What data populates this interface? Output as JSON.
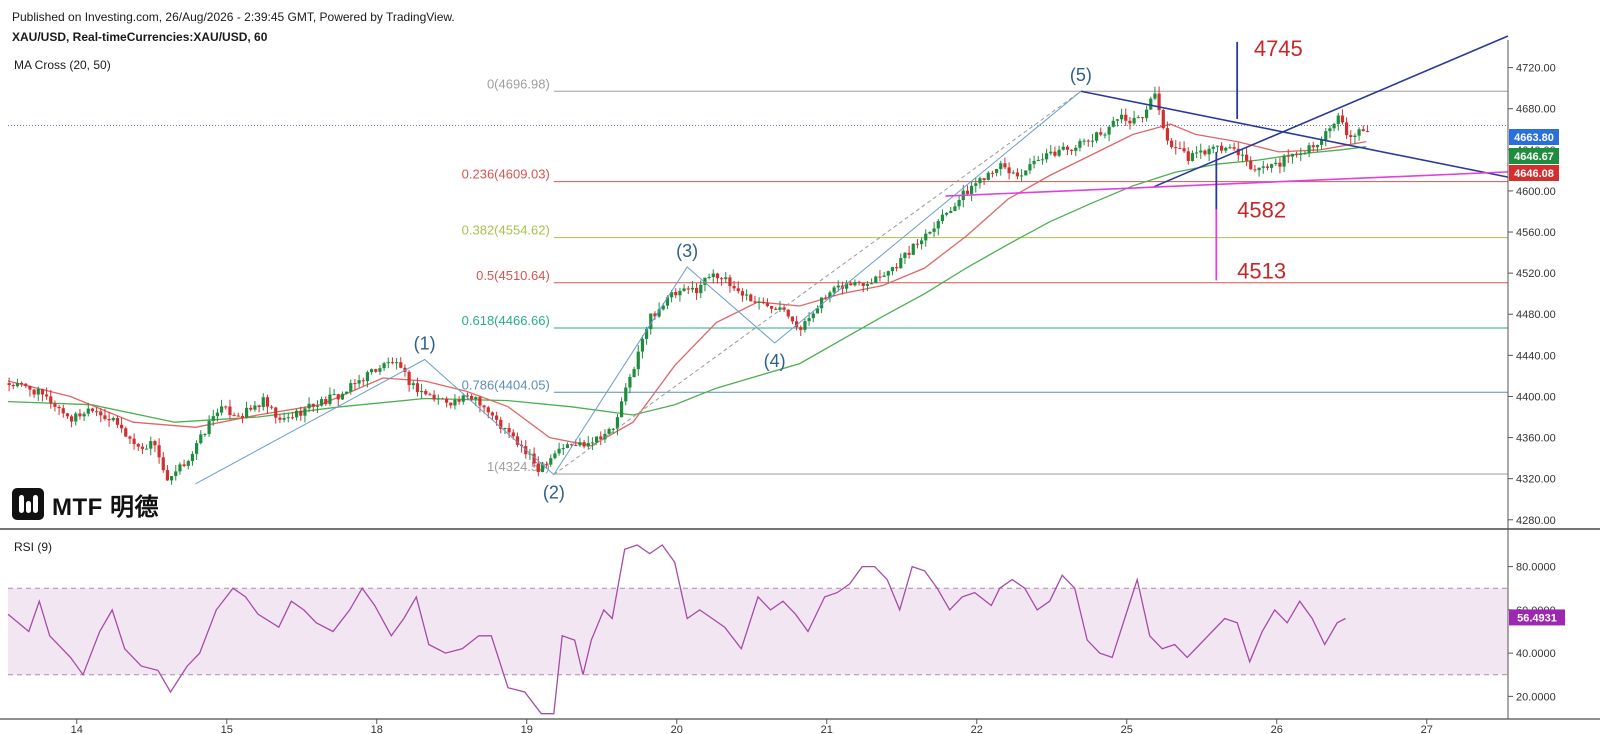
{
  "header": {
    "published": "Published on Investing.com, 26/Aug/2026 - 2:39:45 GMT, Powered by TradingView.",
    "symbol": "XAU/USD, Real-timeCurrencies:XAU/USD, 60"
  },
  "indicators": {
    "ma_cross": "MA Cross (20, 50)",
    "rsi": "RSI (9)"
  },
  "logo": {
    "text": "MTF 明德"
  },
  "colors": {
    "up": "#1e8e3e",
    "down": "#d32f2f",
    "ma_fast": "#e06666",
    "ma_slow": "#4caf50",
    "rsi": "#a64ca6",
    "rsi_band": "#f3e6f3",
    "triangle": "#2a3a9b",
    "support": "#e040e0",
    "wave": "#2d5f8a",
    "price_line": "#2a4a9b"
  },
  "chart_data": [
    {
      "type": "candlestick",
      "title": "XAU/USD, Real-timeCurrencies:XAU/USD, 60",
      "x_tick_labels": [
        "14",
        "15",
        "18",
        "19",
        "20",
        "21",
        "22",
        "25",
        "26",
        "27"
      ],
      "y_ticks": [
        4280,
        4320,
        4360,
        4400,
        4440,
        4480,
        4520,
        4560,
        4600,
        4640,
        4680,
        4720
      ],
      "y_tick_labels": [
        "4280.00",
        "4320.00",
        "4360.00",
        "4400.00",
        "4440.00",
        "4480.00",
        "4520.00",
        "4560.00",
        "4600.00",
        "4640.00",
        "4680.00",
        "4720.00"
      ],
      "ylim": [
        4272,
        4742
      ],
      "grid": false,
      "price_path": [
        [
          0,
          4413
        ],
        [
          12,
          4408
        ],
        [
          22,
          4395
        ],
        [
          32,
          4378
        ],
        [
          42,
          4390
        ],
        [
          54,
          4372
        ],
        [
          64,
          4350
        ],
        [
          72,
          4355
        ],
        [
          78,
          4315
        ],
        [
          90,
          4345
        ],
        [
          102,
          4388
        ],
        [
          114,
          4382
        ],
        [
          124,
          4395
        ],
        [
          132,
          4375
        ],
        [
          148,
          4392
        ],
        [
          162,
          4402
        ],
        [
          176,
          4425
        ],
        [
          186,
          4434
        ],
        [
          196,
          4410
        ],
        [
          206,
          4398
        ],
        [
          216,
          4395
        ],
        [
          226,
          4400
        ],
        [
          236,
          4375
        ],
        [
          246,
          4355
        ],
        [
          256,
          4330
        ],
        [
          266,
          4350
        ],
        [
          278,
          4355
        ],
        [
          292,
          4368
        ],
        [
          300,
          4418
        ],
        [
          310,
          4478
        ],
        [
          320,
          4498
        ],
        [
          332,
          4505
        ],
        [
          340,
          4522
        ],
        [
          348,
          4508
        ],
        [
          362,
          4490
        ],
        [
          374,
          4488
        ],
        [
          382,
          4464
        ],
        [
          390,
          4490
        ],
        [
          402,
          4508
        ],
        [
          414,
          4512
        ],
        [
          426,
          4525
        ],
        [
          436,
          4545
        ],
        [
          446,
          4568
        ],
        [
          456,
          4588
        ],
        [
          466,
          4608
        ],
        [
          476,
          4625
        ],
        [
          486,
          4615
        ],
        [
          496,
          4628
        ],
        [
          506,
          4640
        ],
        [
          516,
          4645
        ],
        [
          526,
          4655
        ],
        [
          534,
          4672
        ],
        [
          544,
          4668
        ],
        [
          552,
          4694
        ],
        [
          558,
          4648
        ],
        [
          568,
          4632
        ],
        [
          578,
          4640
        ],
        [
          588,
          4642
        ],
        [
          600,
          4620
        ],
        [
          612,
          4628
        ],
        [
          624,
          4640
        ],
        [
          634,
          4655
        ],
        [
          640,
          4670
        ],
        [
          646,
          4650
        ],
        [
          652,
          4660
        ]
      ],
      "ma_fast": [
        [
          0,
          4415
        ],
        [
          30,
          4400
        ],
        [
          60,
          4375
        ],
        [
          90,
          4370
        ],
        [
          120,
          4382
        ],
        [
          150,
          4392
        ],
        [
          180,
          4418
        ],
        [
          200,
          4415
        ],
        [
          220,
          4405
        ],
        [
          240,
          4390
        ],
        [
          260,
          4360
        ],
        [
          280,
          4352
        ],
        [
          300,
          4375
        ],
        [
          320,
          4430
        ],
        [
          340,
          4472
        ],
        [
          360,
          4492
        ],
        [
          380,
          4488
        ],
        [
          400,
          4500
        ],
        [
          420,
          4508
        ],
        [
          440,
          4525
        ],
        [
          460,
          4556
        ],
        [
          480,
          4592
        ],
        [
          500,
          4615
        ],
        [
          520,
          4635
        ],
        [
          540,
          4655
        ],
        [
          558,
          4665
        ],
        [
          570,
          4655
        ],
        [
          590,
          4648
        ],
        [
          610,
          4638
        ],
        [
          630,
          4640
        ],
        [
          652,
          4648
        ]
      ],
      "ma_slow": [
        [
          0,
          4395
        ],
        [
          40,
          4392
        ],
        [
          80,
          4375
        ],
        [
          120,
          4380
        ],
        [
          160,
          4390
        ],
        [
          200,
          4398
        ],
        [
          240,
          4396
        ],
        [
          270,
          4390
        ],
        [
          300,
          4382
        ],
        [
          320,
          4392
        ],
        [
          340,
          4408
        ],
        [
          360,
          4420
        ],
        [
          380,
          4432
        ],
        [
          400,
          4455
        ],
        [
          420,
          4478
        ],
        [
          440,
          4500
        ],
        [
          460,
          4525
        ],
        [
          480,
          4548
        ],
        [
          500,
          4570
        ],
        [
          520,
          4588
        ],
        [
          540,
          4605
        ],
        [
          560,
          4618
        ],
        [
          580,
          4626
        ],
        [
          600,
          4630
        ],
        [
          620,
          4636
        ],
        [
          640,
          4640
        ],
        [
          652,
          4643
        ]
      ],
      "fibonacci": [
        {
          "label": "0(4696.98)",
          "value": 4696.98,
          "color": "#9e9e9e"
        },
        {
          "label": "0.236(4609.03)",
          "value": 4609.03,
          "color": "#d9534f"
        },
        {
          "label": "0.382(4554.62)",
          "value": 4554.62,
          "color": "#a8c34a"
        },
        {
          "label": "0.5(4510.64)",
          "value": 4510.64,
          "color": "#d9534f"
        },
        {
          "label": "0.618(4466.66)",
          "value": 4466.66,
          "color": "#27ae8a"
        },
        {
          "label": "0.786(4404.05)",
          "value": 4404.05,
          "color": "#5b8db8"
        },
        {
          "label": "1(4324.50)",
          "value": 4324.5,
          "color": "#9e9e9e"
        }
      ],
      "waves": [
        {
          "label": "(1)",
          "t": 200,
          "value": 4436
        },
        {
          "label": "(2)",
          "t": 262,
          "value": 4324
        },
        {
          "label": "(3)",
          "t": 326,
          "value": 4526
        },
        {
          "label": "(4)",
          "t": 368,
          "value": 4452
        },
        {
          "label": "(5)",
          "t": 515,
          "value": 4697
        }
      ],
      "wave_path": [
        [
          90,
          4315
        ],
        [
          200,
          4436
        ],
        [
          262,
          4324
        ],
        [
          326,
          4526
        ],
        [
          368,
          4452
        ],
        [
          515,
          4697
        ]
      ],
      "triangle": {
        "upper": [
          [
            515,
            4697
          ],
          [
            645,
            4644
          ]
        ],
        "lower": [
          [
            550,
            4604
          ],
          [
            645,
            4686
          ]
        ]
      },
      "support_line": [
        [
          450,
          4595
        ],
        [
          645,
          4612
        ]
      ],
      "targets": [
        {
          "label": "4745",
          "value": 4745,
          "color": "#c62828"
        },
        {
          "label": "4582",
          "value": 4582,
          "color": "#c62828"
        },
        {
          "label": "4513",
          "value": 4513,
          "color": "#c62828"
        }
      ],
      "target_segments": [
        {
          "t": 590,
          "from": 4670,
          "to": 4745,
          "color": "#2a3a9b"
        },
        {
          "t": 580,
          "from": 4638,
          "to": 4582,
          "color": "#2a3a9b"
        },
        {
          "t": 580,
          "from": 4582,
          "to": 4513,
          "color": "#e040e0"
        }
      ],
      "current_price": 4663.8,
      "price_badges": [
        {
          "label": "4663.80",
          "color": "#2a6fdb"
        },
        {
          "label": "4646.67",
          "color": "#1e8e3e"
        },
        {
          "label": "4646.08",
          "color": "#d32f2f"
        }
      ]
    },
    {
      "type": "line",
      "title": "RSI (9)",
      "y_ticks": [
        20,
        40,
        60,
        80
      ],
      "y_tick_labels": [
        "20.0000",
        "40.0000",
        "60.0000",
        "80.0000"
      ],
      "ylim": [
        10,
        96
      ],
      "bands": [
        30,
        70
      ],
      "current_value": 56.4931,
      "current_label": "56.4931",
      "values": [
        [
          0,
          58
        ],
        [
          10,
          50
        ],
        [
          15,
          64
        ],
        [
          20,
          48
        ],
        [
          30,
          38
        ],
        [
          36,
          30
        ],
        [
          44,
          50
        ],
        [
          50,
          60
        ],
        [
          56,
          42
        ],
        [
          64,
          34
        ],
        [
          72,
          32
        ],
        [
          78,
          22
        ],
        [
          86,
          34
        ],
        [
          92,
          40
        ],
        [
          100,
          60
        ],
        [
          108,
          70
        ],
        [
          114,
          66
        ],
        [
          120,
          58
        ],
        [
          130,
          52
        ],
        [
          136,
          64
        ],
        [
          142,
          60
        ],
        [
          148,
          54
        ],
        [
          156,
          50
        ],
        [
          164,
          60
        ],
        [
          170,
          70
        ],
        [
          176,
          62
        ],
        [
          184,
          48
        ],
        [
          190,
          56
        ],
        [
          196,
          66
        ],
        [
          202,
          44
        ],
        [
          210,
          40
        ],
        [
          218,
          42
        ],
        [
          226,
          48
        ],
        [
          232,
          48
        ],
        [
          240,
          24
        ],
        [
          248,
          22
        ],
        [
          256,
          12
        ],
        [
          262,
          12
        ],
        [
          266,
          48
        ],
        [
          272,
          46
        ],
        [
          276,
          30
        ],
        [
          280,
          46
        ],
        [
          286,
          60
        ],
        [
          290,
          56
        ],
        [
          296,
          88
        ],
        [
          302,
          90
        ],
        [
          308,
          86
        ],
        [
          314,
          90
        ],
        [
          320,
          82
        ],
        [
          326,
          56
        ],
        [
          332,
          60
        ],
        [
          338,
          56
        ],
        [
          344,
          52
        ],
        [
          352,
          42
        ],
        [
          360,
          66
        ],
        [
          366,
          60
        ],
        [
          372,
          64
        ],
        [
          378,
          58
        ],
        [
          384,
          50
        ],
        [
          392,
          66
        ],
        [
          398,
          68
        ],
        [
          404,
          72
        ],
        [
          410,
          80
        ],
        [
          416,
          80
        ],
        [
          422,
          74
        ],
        [
          428,
          60
        ],
        [
          434,
          80
        ],
        [
          440,
          78
        ],
        [
          446,
          70
        ],
        [
          452,
          60
        ],
        [
          458,
          66
        ],
        [
          464,
          68
        ],
        [
          472,
          62
        ],
        [
          476,
          70
        ],
        [
          482,
          74
        ],
        [
          488,
          70
        ],
        [
          494,
          60
        ],
        [
          500,
          64
        ],
        [
          506,
          76
        ],
        [
          512,
          70
        ],
        [
          518,
          46
        ],
        [
          524,
          40
        ],
        [
          530,
          38
        ],
        [
          536,
          56
        ],
        [
          542,
          74
        ],
        [
          548,
          48
        ],
        [
          554,
          42
        ],
        [
          560,
          44
        ],
        [
          566,
          38
        ],
        [
          572,
          44
        ],
        [
          578,
          50
        ],
        [
          584,
          56
        ],
        [
          590,
          54
        ],
        [
          596,
          36
        ],
        [
          602,
          50
        ],
        [
          608,
          60
        ],
        [
          614,
          54
        ],
        [
          620,
          64
        ],
        [
          626,
          56
        ],
        [
          632,
          44
        ],
        [
          638,
          54
        ],
        [
          642,
          56
        ]
      ]
    }
  ]
}
